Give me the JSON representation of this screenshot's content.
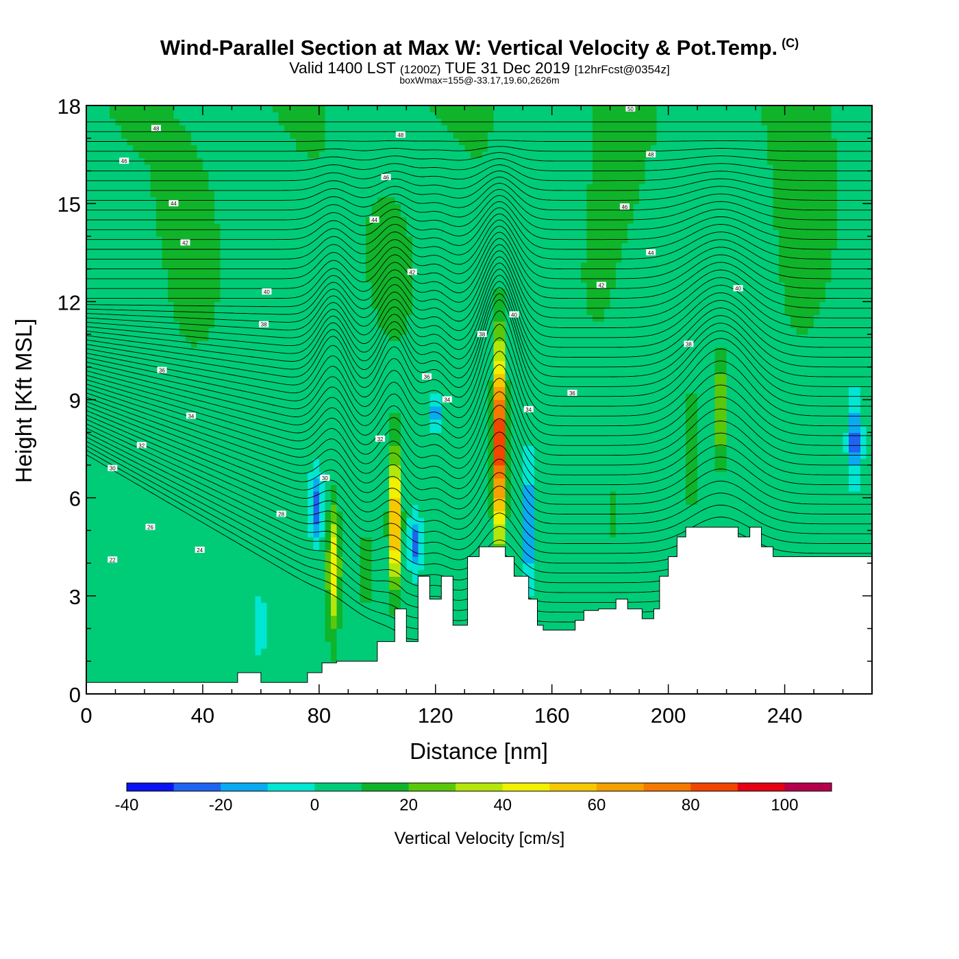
{
  "header": {
    "title": "Wind-Parallel Section at Max W: Vertical Velocity & Pot.Temp.",
    "copyright": "(C)",
    "valid_prefix": "Valid 1400 LST",
    "valid_zulu": "(1200Z)",
    "valid_date": "TUE 31 Dec 2019",
    "forecast": "[12hrFcst@0354z]",
    "boxwmax": "boxWmax=155@-33.17,19.60,2626m"
  },
  "chart_data": {
    "type": "heatmap",
    "xlabel": "Distance [nm]",
    "ylabel": "Height [Kft MSL]",
    "xlim": [
      0,
      270
    ],
    "ylim": [
      0,
      18
    ],
    "xticks": [
      0,
      40,
      80,
      120,
      160,
      200,
      240
    ],
    "yticks": [
      0,
      3,
      6,
      9,
      12,
      15,
      18
    ],
    "colorbar": {
      "label": "Vertical Velocity [cm/s]",
      "bounds": [
        -40,
        -30,
        -20,
        -10,
        0,
        10,
        20,
        30,
        40,
        50,
        60,
        70,
        80,
        90,
        100,
        110
      ],
      "tick_values": [
        -40,
        -20,
        0,
        20,
        40,
        60,
        80,
        100
      ],
      "colors": [
        "#0a14f0",
        "#1e64f0",
        "#0aaaf0",
        "#00e6d2",
        "#00cc78",
        "#10b42a",
        "#5ac80a",
        "#b4e60a",
        "#f0f000",
        "#f5c800",
        "#f5a000",
        "#f57800",
        "#f04600",
        "#e60014",
        "#b4004a"
      ]
    },
    "background_w": 0,
    "updraft_cores": [
      {
        "x": 85,
        "bottom": 1.5,
        "top": 6.3,
        "w_max": 45
      },
      {
        "x": 106,
        "bottom": 2.7,
        "top": 7.8,
        "w_max": 70
      },
      {
        "x": 142,
        "bottom": 4.2,
        "top": 11.3,
        "w_max": 105
      },
      {
        "x": 218,
        "bottom": 6.5,
        "top": 10.8,
        "w_max": 35
      },
      {
        "x": 208,
        "bottom": 5.2,
        "top": 9.8,
        "w_max": 22
      },
      {
        "x": 96,
        "bottom": 2.2,
        "top": 5.5,
        "w_max": 18
      },
      {
        "x": 181,
        "bottom": 4.5,
        "top": 6.5,
        "w_max": 15
      }
    ],
    "downdraft_cores": [
      {
        "x": 79,
        "bottom": 4.5,
        "top": 6.8,
        "w_min": -30
      },
      {
        "x": 113,
        "bottom": 3.7,
        "top": 5.5,
        "w_min": -28
      },
      {
        "x": 152,
        "bottom": 3.0,
        "top": 7.2,
        "w_min": -28
      },
      {
        "x": 264,
        "bottom": 6.5,
        "top": 9.0,
        "w_min": -32
      },
      {
        "x": 120,
        "bottom": 8.0,
        "top": 9.2,
        "w_min": -22
      },
      {
        "x": 60,
        "bottom": 1.0,
        "top": 3.2,
        "w_min": -15
      }
    ],
    "theta_contours": {
      "units": "pot.temp label",
      "labels": [
        {
          "text": "22",
          "x": 9,
          "y": 4.1
        },
        {
          "text": "24",
          "x": 39,
          "y": 4.4
        },
        {
          "text": "26",
          "x": 22,
          "y": 5.1
        },
        {
          "text": "28",
          "x": 67,
          "y": 5.5
        },
        {
          "text": "30",
          "x": 9,
          "y": 6.9
        },
        {
          "text": "30",
          "x": 82,
          "y": 6.6
        },
        {
          "text": "32",
          "x": 19,
          "y": 7.6
        },
        {
          "text": "32",
          "x": 101,
          "y": 7.8
        },
        {
          "text": "34",
          "x": 36,
          "y": 8.5
        },
        {
          "text": "34",
          "x": 124,
          "y": 9.0
        },
        {
          "text": "34",
          "x": 152,
          "y": 8.7
        },
        {
          "text": "36",
          "x": 26,
          "y": 9.9
        },
        {
          "text": "36",
          "x": 117,
          "y": 9.7
        },
        {
          "text": "36",
          "x": 167,
          "y": 9.2
        },
        {
          "text": "38",
          "x": 61,
          "y": 11.3
        },
        {
          "text": "38",
          "x": 136,
          "y": 11.0
        },
        {
          "text": "38",
          "x": 207,
          "y": 10.7
        },
        {
          "text": "40",
          "x": 62,
          "y": 12.3
        },
        {
          "text": "40",
          "x": 147,
          "y": 11.6
        },
        {
          "text": "40",
          "x": 224,
          "y": 12.4
        },
        {
          "text": "42",
          "x": 112,
          "y": 12.9
        },
        {
          "text": "42",
          "x": 177,
          "y": 12.5
        },
        {
          "text": "42",
          "x": 34,
          "y": 13.8
        },
        {
          "text": "44",
          "x": 30,
          "y": 15.0
        },
        {
          "text": "44",
          "x": 99,
          "y": 14.5
        },
        {
          "text": "44",
          "x": 194,
          "y": 13.5
        },
        {
          "text": "46",
          "x": 13,
          "y": 16.3
        },
        {
          "text": "46",
          "x": 103,
          "y": 15.8
        },
        {
          "text": "46",
          "x": 185,
          "y": 14.9
        },
        {
          "text": "48",
          "x": 24,
          "y": 17.3
        },
        {
          "text": "48",
          "x": 108,
          "y": 17.1
        },
        {
          "text": "48",
          "x": 194,
          "y": 16.5
        },
        {
          "text": "50",
          "x": 187,
          "y": 17.9
        }
      ]
    },
    "terrain": [
      [
        0,
        0.35
      ],
      [
        52,
        0.35
      ],
      [
        52,
        0.65
      ],
      [
        60,
        0.65
      ],
      [
        60,
        0.35
      ],
      [
        76,
        0.35
      ],
      [
        76,
        0.65
      ],
      [
        81,
        0.65
      ],
      [
        81,
        0.95
      ],
      [
        86,
        0.95
      ],
      [
        86,
        1.0
      ],
      [
        100,
        1.0
      ],
      [
        100,
        1.6
      ],
      [
        106,
        1.6
      ],
      [
        106,
        2.6
      ],
      [
        110,
        2.6
      ],
      [
        110,
        1.6
      ],
      [
        114,
        1.6
      ],
      [
        114,
        3.6
      ],
      [
        118,
        3.6
      ],
      [
        118,
        2.9
      ],
      [
        122,
        2.9
      ],
      [
        122,
        3.6
      ],
      [
        126,
        3.6
      ],
      [
        126,
        2.1
      ],
      [
        131,
        2.1
      ],
      [
        131,
        4.2
      ],
      [
        135,
        4.2
      ],
      [
        135,
        4.5
      ],
      [
        144,
        4.5
      ],
      [
        144,
        4.2
      ],
      [
        147,
        4.2
      ],
      [
        147,
        3.6
      ],
      [
        152,
        3.6
      ],
      [
        152,
        2.9
      ],
      [
        155,
        2.9
      ],
      [
        155,
        2.1
      ],
      [
        157,
        2.1
      ],
      [
        157,
        1.95
      ],
      [
        168,
        1.95
      ],
      [
        168,
        2.25
      ],
      [
        171,
        2.25
      ],
      [
        171,
        2.55
      ],
      [
        176,
        2.55
      ],
      [
        176,
        2.6
      ],
      [
        182,
        2.6
      ],
      [
        182,
        2.9
      ],
      [
        186,
        2.9
      ],
      [
        186,
        2.6
      ],
      [
        191,
        2.6
      ],
      [
        191,
        2.3
      ],
      [
        195,
        2.3
      ],
      [
        195,
        2.6
      ],
      [
        197,
        2.6
      ],
      [
        197,
        3.6
      ],
      [
        200,
        3.6
      ],
      [
        200,
        4.2
      ],
      [
        203,
        4.2
      ],
      [
        203,
        4.8
      ],
      [
        206,
        4.8
      ],
      [
        206,
        5.1
      ],
      [
        224,
        5.1
      ],
      [
        224,
        4.8
      ],
      [
        228,
        4.8
      ],
      [
        228,
        5.1
      ],
      [
        232,
        5.1
      ],
      [
        232,
        4.5
      ],
      [
        236,
        4.5
      ],
      [
        236,
        4.2
      ],
      [
        270,
        4.2
      ]
    ]
  }
}
